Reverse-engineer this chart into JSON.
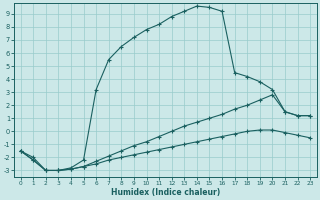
{
  "xlabel": "Humidex (Indice chaleur)",
  "bg_color": "#cce8e8",
  "grid_color": "#99cccc",
  "line_color": "#1a6060",
  "xlim": [
    -0.5,
    23.5
  ],
  "ylim": [
    -3.5,
    9.8
  ],
  "xticks": [
    0,
    1,
    2,
    3,
    4,
    5,
    6,
    7,
    8,
    9,
    10,
    11,
    12,
    13,
    14,
    15,
    16,
    17,
    18,
    19,
    20,
    21,
    22,
    23
  ],
  "yticks": [
    -3,
    -2,
    -1,
    0,
    1,
    2,
    3,
    4,
    5,
    6,
    7,
    8,
    9
  ],
  "curve1_x": [
    0,
    1,
    2,
    3,
    4,
    5,
    6,
    7,
    8,
    9,
    10,
    11,
    12,
    13,
    14,
    15,
    16,
    17,
    18,
    19,
    20,
    21,
    22,
    23
  ],
  "curve1_y": [
    -1.5,
    -2.0,
    -3.0,
    -3.0,
    -2.8,
    -2.2,
    3.2,
    5.5,
    6.5,
    7.2,
    7.8,
    8.2,
    8.8,
    9.2,
    9.6,
    9.5,
    9.2,
    4.5,
    4.2,
    3.8,
    3.2,
    1.5,
    1.2,
    1.2
  ],
  "curve2_x": [
    0,
    1,
    2,
    3,
    4,
    5,
    6,
    7,
    8,
    9,
    10,
    11,
    12,
    13,
    14,
    15,
    16,
    17,
    18,
    19,
    20,
    21,
    22,
    23
  ],
  "curve2_y": [
    -1.5,
    -2.2,
    -3.0,
    -3.0,
    -2.9,
    -2.7,
    -2.3,
    -1.9,
    -1.5,
    -1.1,
    -0.8,
    -0.4,
    0.0,
    0.4,
    0.7,
    1.0,
    1.3,
    1.7,
    2.0,
    2.4,
    2.8,
    1.5,
    1.2,
    1.2
  ],
  "curve3_x": [
    0,
    1,
    2,
    3,
    4,
    5,
    6,
    7,
    8,
    9,
    10,
    11,
    12,
    13,
    14,
    15,
    16,
    17,
    18,
    19,
    20,
    21,
    22,
    23
  ],
  "curve3_y": [
    -1.5,
    -2.2,
    -3.0,
    -3.0,
    -2.9,
    -2.7,
    -2.5,
    -2.2,
    -2.0,
    -1.8,
    -1.6,
    -1.4,
    -1.2,
    -1.0,
    -0.8,
    -0.6,
    -0.4,
    -0.2,
    0.0,
    0.1,
    0.1,
    -0.1,
    -0.3,
    -0.5
  ]
}
